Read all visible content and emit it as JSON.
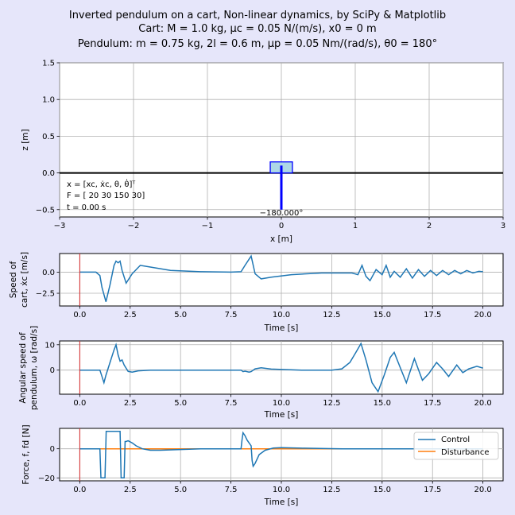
{
  "title": {
    "line1": "Inverted pendulum on a cart, Non-linear dynamics, by SciPy & Matplotlib",
    "line2": "Cart: M = 1.0 kg, μc = 0.05 N/(m/s), x0 = 0 m",
    "line3": "Pendulum: m = 0.75 kg, 2l = 0.6 m, μp = 0.05 Nm/(rad/s), θ0 = 180°"
  },
  "colors": {
    "background": "#e6e6fa",
    "series_blue": "#1f77b4",
    "series_orange": "#ff7f0e",
    "cart_fill": "#add8e6",
    "pendulum": "#0000ff",
    "time_marker": "#d62728"
  },
  "chart_data": [
    {
      "type": "scene",
      "xlabel": "x [m]",
      "ylabel": "z [m]",
      "xlim": [
        -3,
        3
      ],
      "ylim": [
        -0.6,
        1.5
      ],
      "xticks": [
        "−3",
        "−2",
        "−1",
        "0",
        "1",
        "2",
        "3"
      ],
      "yticks": [
        "−0.5",
        "0.0",
        "0.5",
        "1.0",
        "1.5"
      ],
      "grid": true,
      "cart": {
        "x": 0,
        "width": 0.3,
        "height": 0.15
      },
      "pendulum_angle_deg": 180,
      "pendulum_length": 0.6,
      "state_label": "x = [xc, ẋc, θ, θ̇]ᵀ",
      "gain_label": "F = [ 20   30 150   30]",
      "time_label": "t = 0.00 s",
      "angle_label": "−180.000°"
    },
    {
      "type": "line",
      "ylabel_line1": "Speed of",
      "ylabel_line2": "cart, ẋc [m/s]",
      "xlabel": "Time [s]",
      "xlim": [
        -1,
        21
      ],
      "ylim": [
        -4.0,
        2.2
      ],
      "yticks": [
        "−2.5",
        "0.0"
      ],
      "grid": true,
      "series": [
        {
          "x": [
            0,
            0.8,
            1.0,
            1.1,
            1.3,
            1.5,
            1.7,
            1.8,
            1.9,
            2.0,
            2.1,
            2.3,
            2.6,
            3.0,
            3.5,
            4.5,
            6.0,
            7.5,
            8.0,
            8.2,
            8.5,
            8.7,
            9.0,
            9.5,
            10.5,
            12.0,
            13.5,
            13.8,
            14.0,
            14.2,
            14.4,
            14.7,
            15.0,
            15.2,
            15.4,
            15.6,
            15.9,
            16.2,
            16.5,
            16.8,
            17.1,
            17.4,
            17.7,
            18.0,
            18.3,
            18.6,
            18.9,
            19.2,
            19.5,
            19.8,
            20.0
          ],
          "values": [
            0,
            0,
            -0.4,
            -1.8,
            -3.5,
            -1.5,
            0.8,
            1.3,
            1.1,
            1.3,
            0.2,
            -1.3,
            -0.2,
            0.8,
            0.6,
            0.2,
            0.05,
            0.0,
            0.05,
            0.8,
            1.9,
            -0.2,
            -0.8,
            -0.6,
            -0.3,
            -0.1,
            -0.1,
            -0.3,
            0.8,
            -0.5,
            -1.0,
            0.3,
            -0.3,
            0.8,
            -0.6,
            0.1,
            -0.6,
            0.4,
            -0.7,
            0.3,
            -0.5,
            0.2,
            -0.4,
            0.2,
            -0.3,
            0.2,
            -0.2,
            0.2,
            -0.1,
            0.1,
            0.05
          ]
        }
      ],
      "time_marker": 0
    },
    {
      "type": "line",
      "ylabel_line1": "Angular speed of",
      "ylabel_line2": "pendulum, ω [rad/s]",
      "xlabel": "Time [s]",
      "xlim": [
        -1,
        21
      ],
      "ylim": [
        -9.5,
        11.5
      ],
      "yticks": [
        "0",
        "10"
      ],
      "grid": true,
      "series": [
        {
          "x": [
            0,
            0.8,
            1.0,
            1.1,
            1.2,
            1.3,
            1.5,
            1.7,
            1.8,
            1.9,
            2.0,
            2.1,
            2.2,
            2.4,
            2.6,
            2.9,
            3.5,
            5.0,
            7.5,
            8.0,
            8.1,
            8.2,
            8.4,
            8.5,
            8.7,
            9.0,
            9.5,
            11.0,
            12.5,
            13.0,
            13.4,
            13.7,
            13.95,
            14.2,
            14.5,
            14.8,
            15.1,
            15.4,
            15.6,
            15.9,
            16.2,
            16.6,
            17.0,
            17.3,
            17.7,
            18.0,
            18.3,
            18.7,
            19.0,
            19.3,
            19.7,
            20.0
          ],
          "values": [
            0,
            0,
            0,
            -2.5,
            -5,
            -2,
            3,
            8,
            10,
            6,
            3.5,
            4,
            2,
            -0.5,
            -0.8,
            -0.3,
            0,
            0,
            0,
            0,
            -0.6,
            -0.4,
            -0.8,
            -0.6,
            0.5,
            0.9,
            0.4,
            0,
            0,
            0.5,
            3,
            7,
            10.5,
            4,
            -5,
            -8.5,
            -2,
            5,
            7,
            1,
            -5,
            4.5,
            -4,
            -1.5,
            3,
            0.5,
            -2.5,
            2,
            -1,
            0.5,
            1.5,
            0.8
          ]
        }
      ],
      "time_marker": 0
    },
    {
      "type": "line",
      "ylabel_line1": "Force, f, fd [N]",
      "xlabel": "Time [s]",
      "xlim": [
        -1,
        21
      ],
      "ylim": [
        -22,
        14
      ],
      "yticks": [
        "−20",
        "0"
      ],
      "xticks": [
        "0.0",
        "2.5",
        "5.0",
        "7.5",
        "10.0",
        "12.5",
        "15.0",
        "17.5",
        "20.0"
      ],
      "grid": true,
      "legend": {
        "placement": "top-right",
        "entries": [
          "Control",
          "Disturbance"
        ]
      },
      "series": [
        {
          "name": "Control",
          "x": [
            0,
            1.0,
            1.02,
            1.05,
            1.2,
            1.25,
            1.3,
            1.31,
            1.35,
            1.5,
            1.8,
            2.0,
            2.05,
            2.1,
            2.2,
            2.25,
            2.3,
            2.4,
            2.6,
            2.8,
            3.1,
            3.5,
            4.0,
            5.0,
            6.0,
            7.5,
            8.0,
            8.05,
            8.1,
            8.2,
            8.3,
            8.4,
            8.5,
            8.55,
            8.6,
            8.7,
            8.9,
            9.2,
            9.6,
            10.0,
            11.0,
            13.0,
            20.0
          ],
          "values": [
            0,
            0,
            -8,
            -20,
            -20,
            -20,
            5,
            12,
            12,
            12,
            12,
            12,
            -20,
            -20,
            -20,
            5,
            5,
            5.5,
            4,
            2,
            0,
            -1,
            -1,
            -0.5,
            0,
            0,
            0,
            6,
            11,
            9,
            6,
            4,
            2,
            -8,
            -12,
            -10,
            -4,
            -1,
            0.5,
            0.8,
            0.4,
            0,
            0
          ]
        },
        {
          "name": "Disturbance",
          "x": [
            0,
            20
          ],
          "values": [
            0,
            0
          ]
        }
      ],
      "time_marker": 0
    }
  ]
}
